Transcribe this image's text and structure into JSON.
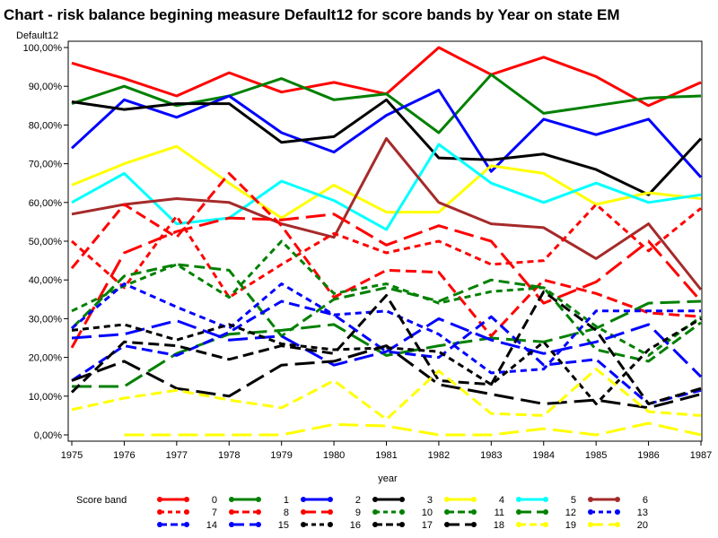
{
  "chart_data": {
    "type": "line",
    "title": "Chart - risk balance begining measure Default12 for score bands by Year on state EM",
    "ylabel": "Default12",
    "xlabel": "year",
    "x": [
      1975,
      1976,
      1977,
      1978,
      1979,
      1980,
      1981,
      1982,
      1983,
      1984,
      1985,
      1986,
      1987
    ],
    "ylim": [
      0,
      1
    ],
    "yticks": [
      "0,00%",
      "10,00%",
      "20,00%",
      "30,00%",
      "40,00%",
      "50,00%",
      "60,00%",
      "70,00%",
      "80,00%",
      "90,00%",
      "100,00%"
    ],
    "grid": false,
    "legend": {
      "title": "Score band",
      "placement": "bottom"
    },
    "series": [
      {
        "name": "0",
        "color": "#ff0000",
        "dash": "solid",
        "values": [
          0.96,
          0.92,
          0.875,
          0.935,
          0.885,
          0.91,
          0.88,
          1.0,
          0.93,
          0.975,
          0.925,
          0.85,
          0.91
        ]
      },
      {
        "name": "1",
        "color": "#008000",
        "dash": "solid",
        "values": [
          0.855,
          0.9,
          0.85,
          0.875,
          0.92,
          0.865,
          0.88,
          0.78,
          0.93,
          0.83,
          0.85,
          0.87,
          0.875
        ]
      },
      {
        "name": "2",
        "color": "#0000ff",
        "dash": "solid",
        "values": [
          0.74,
          0.865,
          0.82,
          0.875,
          0.78,
          0.73,
          0.825,
          0.89,
          0.68,
          0.815,
          0.775,
          0.815,
          0.665
        ]
      },
      {
        "name": "3",
        "color": "#000000",
        "dash": "solid",
        "values": [
          0.86,
          0.84,
          0.855,
          0.855,
          0.755,
          0.77,
          0.865,
          0.715,
          0.71,
          0.725,
          0.685,
          0.62,
          0.765
        ]
      },
      {
        "name": "4",
        "color": "#ffff00",
        "dash": "solid",
        "values": [
          0.645,
          0.7,
          0.745,
          0.65,
          0.56,
          0.645,
          0.575,
          0.575,
          0.695,
          0.675,
          0.595,
          0.625,
          0.61
        ]
      },
      {
        "name": "5",
        "color": "#00ffff",
        "dash": "solid",
        "values": [
          0.6,
          0.675,
          0.545,
          0.56,
          0.655,
          0.605,
          0.53,
          0.75,
          0.65,
          0.6,
          0.65,
          0.6,
          0.62
        ]
      },
      {
        "name": "6",
        "color": "#a52a2a",
        "dash": "solid",
        "values": [
          0.57,
          0.595,
          0.61,
          0.6,
          0.545,
          0.51,
          0.765,
          0.6,
          0.545,
          0.535,
          0.455,
          0.545,
          0.375
        ]
      },
      {
        "name": "7",
        "color": "#ff0000",
        "dash": "short",
        "values": [
          0.5,
          0.38,
          0.565,
          0.355,
          0.44,
          0.52,
          0.47,
          0.5,
          0.44,
          0.45,
          0.595,
          0.475,
          0.585
        ]
      },
      {
        "name": "8",
        "color": "#ff0000",
        "dash": "medium",
        "values": [
          0.43,
          0.595,
          0.51,
          0.675,
          0.54,
          0.355,
          0.425,
          0.42,
          0.255,
          0.4,
          0.365,
          0.315,
          0.305
        ]
      },
      {
        "name": "9",
        "color": "#ff0000",
        "dash": "long",
        "values": [
          0.225,
          0.47,
          0.525,
          0.56,
          0.555,
          0.57,
          0.49,
          0.54,
          0.5,
          0.34,
          0.395,
          0.5,
          0.345
        ]
      },
      {
        "name": "10",
        "color": "#008000",
        "dash": "short",
        "values": [
          0.32,
          0.385,
          0.44,
          0.355,
          0.5,
          0.365,
          0.39,
          0.34,
          0.37,
          0.38,
          0.28,
          0.205,
          0.305
        ]
      },
      {
        "name": "11",
        "color": "#008000",
        "dash": "medium",
        "values": [
          0.275,
          0.41,
          0.44,
          0.425,
          0.255,
          0.35,
          0.38,
          0.345,
          0.4,
          0.38,
          0.22,
          0.19,
          0.29
        ]
      },
      {
        "name": "12",
        "color": "#008000",
        "dash": "long",
        "values": [
          0.125,
          0.125,
          0.21,
          0.26,
          0.27,
          0.285,
          0.205,
          0.23,
          0.25,
          0.24,
          0.275,
          0.34,
          0.345
        ]
      },
      {
        "name": "13",
        "color": "#0000ff",
        "dash": "short",
        "values": [
          0.275,
          0.39,
          0.33,
          0.275,
          0.39,
          0.31,
          0.32,
          0.26,
          0.16,
          0.17,
          0.32,
          0.32,
          0.32
        ]
      },
      {
        "name": "14",
        "color": "#0000ff",
        "dash": "medium",
        "values": [
          0.14,
          0.23,
          0.205,
          0.265,
          0.345,
          0.31,
          0.215,
          0.2,
          0.305,
          0.18,
          0.195,
          0.08,
          0.115
        ]
      },
      {
        "name": "15",
        "color": "#0000ff",
        "dash": "long",
        "values": [
          0.25,
          0.26,
          0.295,
          0.245,
          0.255,
          0.18,
          0.215,
          0.3,
          0.245,
          0.21,
          0.24,
          0.285,
          0.15
        ]
      },
      {
        "name": "16",
        "color": "#000000",
        "dash": "short",
        "values": [
          0.27,
          0.285,
          0.245,
          0.285,
          0.235,
          0.22,
          0.225,
          0.215,
          0.13,
          0.24,
          0.08,
          0.22,
          0.3
        ]
      },
      {
        "name": "17",
        "color": "#000000",
        "dash": "medium",
        "values": [
          0.11,
          0.24,
          0.23,
          0.195,
          0.23,
          0.21,
          0.36,
          0.14,
          0.13,
          0.37,
          0.27,
          0.08,
          0.12
        ]
      },
      {
        "name": "18",
        "color": "#000000",
        "dash": "long",
        "values": [
          0.14,
          0.19,
          0.12,
          0.1,
          0.18,
          0.19,
          0.23,
          0.13,
          0.105,
          0.08,
          0.09,
          0.07,
          0.105
        ]
      },
      {
        "name": "19",
        "color": "#ffff00",
        "dash": "medium",
        "values": [
          0.065,
          0.095,
          0.115,
          0.09,
          0.07,
          0.14,
          0.04,
          0.165,
          0.055,
          0.05,
          0.17,
          0.06,
          0.05
        ]
      },
      {
        "name": "20",
        "color": "#ffff00",
        "dash": "long",
        "values": [
          null,
          0.0,
          0.0,
          0.0,
          0.0,
          0.027,
          0.023,
          0.0,
          0.0,
          0.016,
          0.0,
          0.03,
          0.0
        ]
      }
    ]
  }
}
